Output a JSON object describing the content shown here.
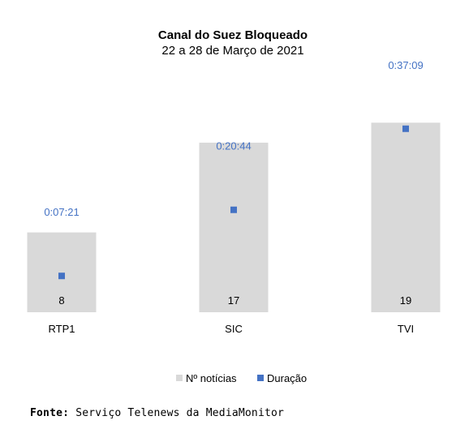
{
  "chart_data": {
    "type": "bar",
    "title": "Canal do Suez Bloqueado",
    "subtitle": "22 a 28 de Março de 2021",
    "categories": [
      "RTP1",
      "SIC",
      "TVI"
    ],
    "series": [
      {
        "name": "Nº notícias",
        "type": "bar",
        "values": [
          8,
          17,
          19
        ],
        "color": "#D9D9D9"
      },
      {
        "name": "Duração",
        "type": "marker",
        "values": [
          "0:07:21",
          "0:20:44",
          "0:37:09"
        ],
        "seconds": [
          441,
          1244,
          2229
        ],
        "color": "#4472C4"
      }
    ],
    "ylim_count": [
      0,
      20
    ],
    "ylim_duration_seconds": [
      0,
      2520
    ],
    "legend_position": "bottom",
    "grid": false
  },
  "source": {
    "label": "Fonte",
    "text": "Serviço Telenews da MediaMonitor"
  },
  "colors": {
    "bar": "#D9D9D9",
    "marker": "#4472C4"
  }
}
